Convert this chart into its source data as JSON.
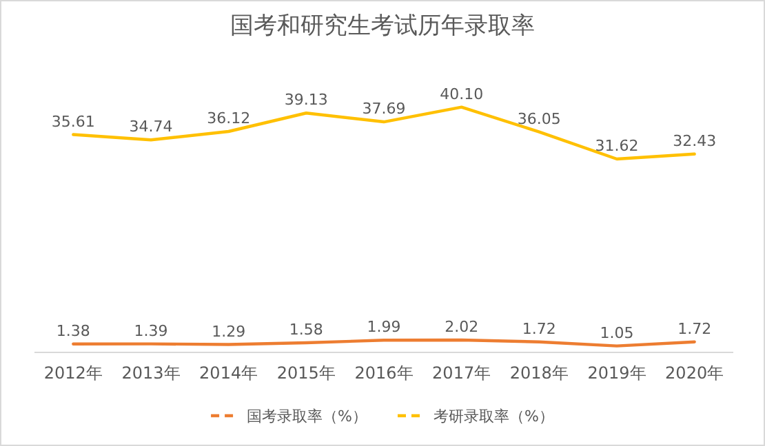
{
  "chart_data": {
    "type": "line",
    "title": "国考和研究生考试历年录取率",
    "categories": [
      "2012年",
      "2013年",
      "2014年",
      "2015年",
      "2016年",
      "2017年",
      "2018年",
      "2019年",
      "2020年"
    ],
    "series": [
      {
        "name": "国考录取率（%）",
        "color": "#ed7d31",
        "values": [
          1.38,
          1.39,
          1.29,
          1.58,
          1.99,
          2.02,
          1.72,
          1.05,
          1.72
        ],
        "value_labels": [
          "1.38",
          "1.39",
          "1.29",
          "1.58",
          "1.99",
          "2.02",
          "1.72",
          "1.05",
          "1.72"
        ]
      },
      {
        "name": "考研录取率（%）",
        "color": "#ffc000",
        "values": [
          35.61,
          34.74,
          36.12,
          39.13,
          37.69,
          40.1,
          36.05,
          31.62,
          32.43
        ],
        "value_labels": [
          "35.61",
          "34.74",
          "36.12",
          "39.13",
          "37.69",
          "40.10",
          "36.05",
          "31.62",
          "32.43"
        ]
      }
    ],
    "legend": "bottom",
    "marker": "none",
    "line_style": "solid"
  }
}
